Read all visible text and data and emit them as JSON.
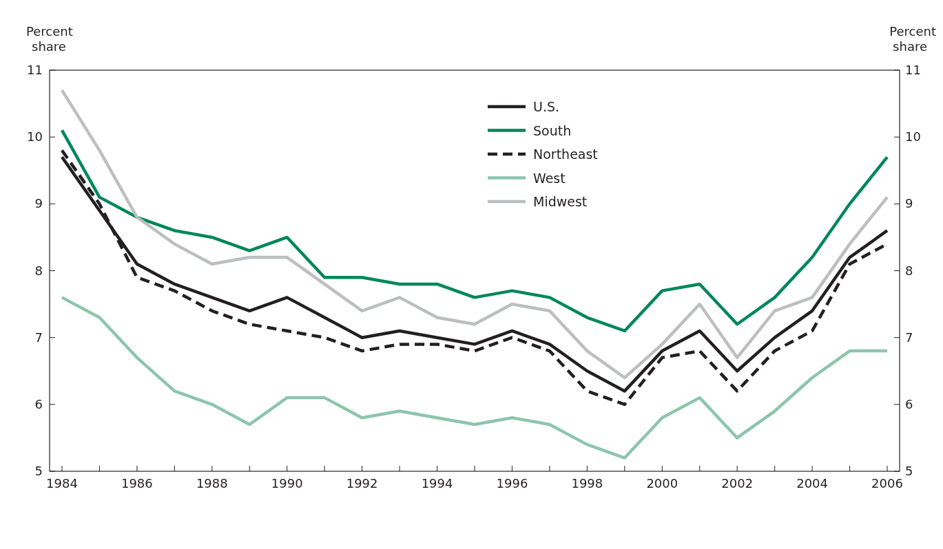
{
  "chart_data": {
    "type": "line",
    "ylabel": "Percent share",
    "y2label": "Percent share",
    "x": [
      1984,
      1985,
      1986,
      1987,
      1988,
      1989,
      1990,
      1991,
      1992,
      1993,
      1994,
      1995,
      1996,
      1997,
      1998,
      1999,
      2000,
      2001,
      2002,
      2003,
      2004,
      2005,
      2006
    ],
    "xlim": [
      1983.67,
      2006.33
    ],
    "xticks": [
      1984,
      {
        "value": 1985,
        "label": null
      },
      1986,
      {
        "value": 1987,
        "label": null
      },
      1988,
      {
        "value": 1989,
        "label": null
      },
      1990,
      {
        "value": 1991,
        "label": null
      },
      1992,
      {
        "value": 1993,
        "label": null
      },
      1994,
      {
        "value": 1995,
        "label": null
      },
      1996,
      {
        "value": 1997,
        "label": null
      },
      1998,
      {
        "value": 1999,
        "label": null
      },
      2000,
      {
        "value": 2001,
        "label": null
      },
      2002,
      {
        "value": 2003,
        "label": null
      },
      2004,
      {
        "value": 2005,
        "label": null
      },
      2006
    ],
    "ylim": [
      5,
      11
    ],
    "yticks": [
      5,
      6,
      7,
      8,
      9,
      10,
      11
    ],
    "y2lim": [
      5,
      11
    ],
    "y2ticks": [
      5,
      6,
      7,
      8,
      9,
      10,
      11
    ],
    "grid": false,
    "legend": "top",
    "series": [
      {
        "name": "U.S.",
        "color": "#231f20",
        "line_style": "solid",
        "values": [
          9.7,
          8.9,
          8.1,
          7.8,
          7.6,
          7.4,
          7.6,
          7.3,
          7.0,
          7.1,
          7.0,
          6.9,
          7.1,
          6.9,
          6.5,
          6.2,
          6.8,
          7.1,
          6.5,
          7.0,
          7.4,
          8.2,
          8.6
        ]
      },
      {
        "name": "South",
        "color": "#00875a",
        "line_style": "solid",
        "values": [
          10.1,
          9.1,
          8.8,
          8.6,
          8.5,
          8.3,
          8.5,
          7.9,
          7.9,
          7.8,
          7.8,
          7.6,
          7.7,
          7.6,
          7.3,
          7.1,
          7.7,
          7.8,
          7.2,
          7.6,
          8.2,
          9.0,
          9.7
        ]
      },
      {
        "name": "Northeast",
        "color": "#231f20",
        "line_style": "dashed",
        "values": [
          9.8,
          9.0,
          7.9,
          7.7,
          7.4,
          7.2,
          7.1,
          7.0,
          6.8,
          6.9,
          6.9,
          6.8,
          7.0,
          6.8,
          6.2,
          6.0,
          6.7,
          6.8,
          6.2,
          6.8,
          7.1,
          8.1,
          8.4
        ]
      },
      {
        "name": "West",
        "color": "#8cc5ad",
        "line_style": "solid",
        "values": [
          7.6,
          7.3,
          6.7,
          6.2,
          6.0,
          5.7,
          6.1,
          6.1,
          5.8,
          5.9,
          5.8,
          5.7,
          5.8,
          5.7,
          5.4,
          5.2,
          5.8,
          6.1,
          5.5,
          5.9,
          6.4,
          6.8,
          6.8
        ]
      },
      {
        "name": "Midwest",
        "color": "#bcbec0",
        "line_style": "solid",
        "values": [
          10.7,
          9.8,
          8.8,
          8.4,
          8.1,
          8.2,
          8.2,
          7.8,
          7.4,
          7.6,
          7.3,
          7.2,
          7.5,
          7.4,
          6.8,
          6.4,
          6.9,
          7.5,
          6.7,
          7.4,
          7.6,
          8.4,
          9.1
        ]
      }
    ]
  }
}
